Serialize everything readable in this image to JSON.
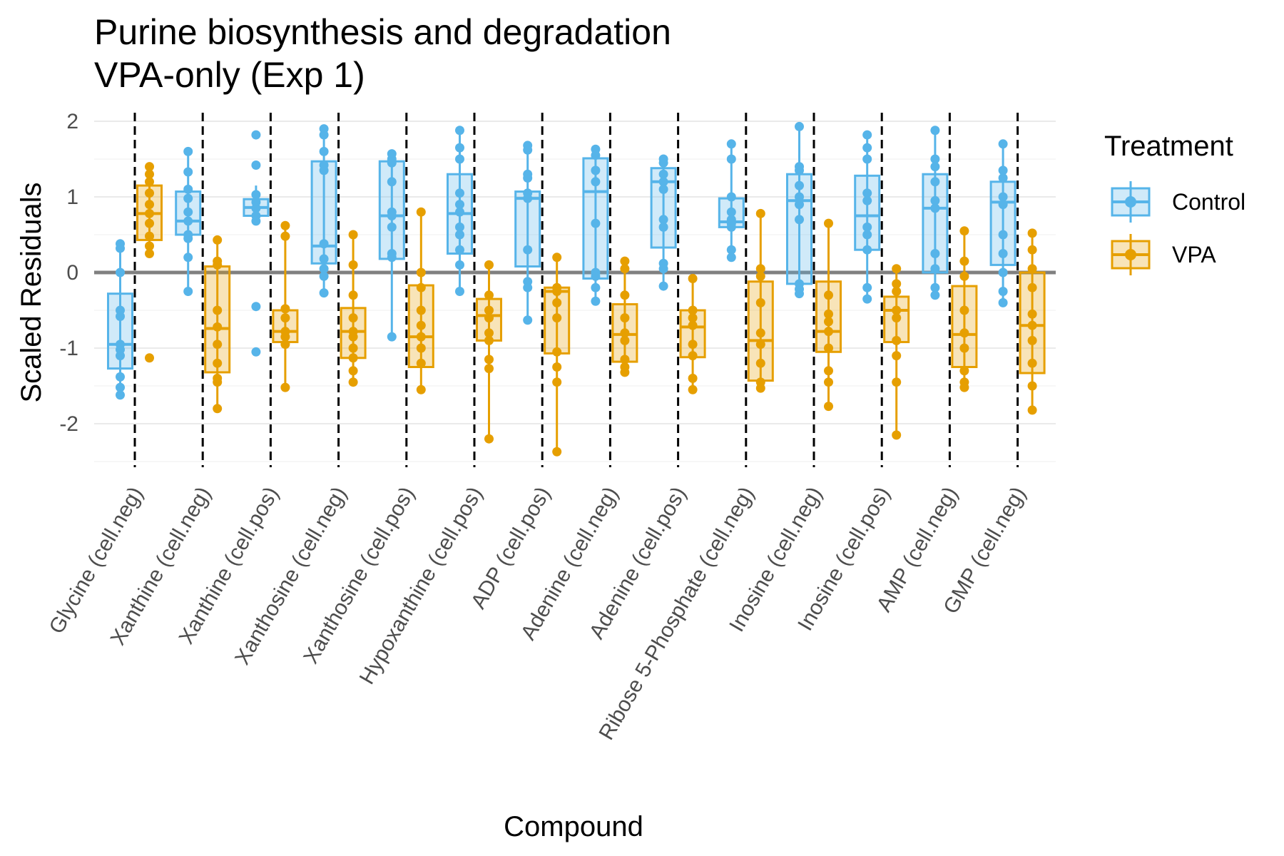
{
  "chart_data": {
    "type": "box",
    "title": [
      "Purine biosynthesis and degradation",
      "VPA-only (Exp 1)"
    ],
    "xlabel": "Compound",
    "ylabel": "Scaled Residuals",
    "ylim": [
      -2.5,
      2.2
    ],
    "yticks": [
      2,
      1,
      0,
      -1,
      -2
    ],
    "ytick_labels": [
      "2",
      "1",
      "0",
      "-1",
      "-2"
    ],
    "reference_line_y": 0,
    "grid": true,
    "legend_position": "right",
    "legend_title": "Treatment",
    "categories": [
      "Glycine (cell.neg)",
      "Xanthine (cell.neg)",
      "Xanthine (cell.pos)",
      "Xanthosine (cell.neg)",
      "Xanthosine (cell.pos)",
      "Hypoxanthine (cell.pos)",
      "ADP (cell.pos)",
      "Adenine (cell.neg)",
      "Adenine (cell.pos)",
      "Ribose 5-Phosphate (cell.neg)",
      "Inosine (cell.neg)",
      "Inosine (cell.pos)",
      "AMP (cell.neg)",
      "GMP (cell.neg)"
    ],
    "series": [
      {
        "name": "Control",
        "color": "#56B4E9",
        "boxes": [
          {
            "min": -1.6,
            "q1": -1.27,
            "median": -0.95,
            "q3": -0.28,
            "max": 0.38
          },
          {
            "min": -0.25,
            "q1": 0.5,
            "median": 0.68,
            "q3": 1.07,
            "max": 1.6
          },
          {
            "min": 0.65,
            "q1": 0.75,
            "median": 0.86,
            "q3": 0.97,
            "max": 1.15
          },
          {
            "min": -0.27,
            "q1": 0.12,
            "median": 0.35,
            "q3": 1.47,
            "max": 1.9
          },
          {
            "min": -0.85,
            "q1": 0.18,
            "median": 0.75,
            "q3": 1.47,
            "max": 1.57
          },
          {
            "min": -0.25,
            "q1": 0.25,
            "median": 0.78,
            "q3": 1.3,
            "max": 1.88
          },
          {
            "min": -0.63,
            "q1": 0.08,
            "median": 0.98,
            "q3": 1.07,
            "max": 1.68
          },
          {
            "min": -0.38,
            "q1": -0.08,
            "median": 1.07,
            "q3": 1.51,
            "max": 1.63
          },
          {
            "min": -0.18,
            "q1": 0.33,
            "median": 1.2,
            "q3": 1.38,
            "max": 1.5
          },
          {
            "min": 0.17,
            "q1": 0.6,
            "median": 0.67,
            "q3": 0.98,
            "max": 1.7
          },
          {
            "min": -0.28,
            "q1": -0.15,
            "median": 0.95,
            "q3": 1.3,
            "max": 1.93
          },
          {
            "min": -0.35,
            "q1": 0.3,
            "median": 0.75,
            "q3": 1.28,
            "max": 1.82
          },
          {
            "min": -0.3,
            "q1": 0.0,
            "median": 0.85,
            "q3": 1.3,
            "max": 1.88
          },
          {
            "min": -0.4,
            "q1": 0.1,
            "median": 0.93,
            "q3": 1.2,
            "max": 1.7
          }
        ],
        "points": [
          [
            0.38,
            0.32,
            0.0,
            -0.5,
            -0.58,
            -0.95,
            -1.02,
            -1.1,
            -1.38,
            -1.52,
            -1.62
          ],
          [
            1.6,
            1.33,
            1.1,
            0.98,
            0.8,
            0.68,
            0.5,
            0.45,
            0.2,
            -0.25
          ],
          [
            1.82,
            1.42,
            1.03,
            0.93,
            0.85,
            0.75,
            0.68,
            -0.45,
            -1.05
          ],
          [
            1.9,
            1.82,
            1.6,
            1.42,
            1.35,
            0.38,
            0.18,
            0.05,
            -0.05,
            -0.27
          ],
          [
            1.57,
            1.5,
            1.45,
            1.2,
            0.8,
            0.75,
            0.6,
            0.25,
            0.2,
            -0.85
          ],
          [
            1.88,
            1.65,
            1.5,
            1.05,
            0.9,
            0.8,
            0.6,
            0.5,
            0.3,
            0.1,
            -0.25
          ],
          [
            1.68,
            1.62,
            1.3,
            1.25,
            1.05,
            0.98,
            0.3,
            -0.12,
            -0.2,
            -0.63
          ],
          [
            1.63,
            1.55,
            1.35,
            1.2,
            0.65,
            0.0,
            -0.05,
            -0.2,
            -0.38
          ],
          [
            1.5,
            1.45,
            1.3,
            1.2,
            1.1,
            0.7,
            0.6,
            0.12,
            0.05,
            -0.18
          ],
          [
            1.7,
            1.5,
            1.0,
            0.8,
            0.7,
            0.65,
            0.6,
            0.3,
            0.2
          ],
          [
            1.93,
            1.4,
            1.35,
            1.15,
            1.0,
            0.9,
            0.7,
            -0.15,
            -0.22,
            -0.28
          ],
          [
            1.82,
            1.65,
            1.5,
            1.05,
            0.95,
            0.6,
            0.5,
            0.3,
            -0.2,
            -0.35
          ],
          [
            1.88,
            1.5,
            1.4,
            1.2,
            0.95,
            0.85,
            0.25,
            0.05,
            -0.2,
            -0.3
          ],
          [
            1.7,
            1.35,
            1.25,
            1.0,
            0.9,
            0.5,
            0.25,
            0.0,
            -0.25,
            -0.4
          ]
        ]
      },
      {
        "name": "VPA",
        "color": "#E69F00",
        "boxes": [
          {
            "min": 0.25,
            "q1": 0.43,
            "median": 0.78,
            "q3": 1.15,
            "max": 1.4
          },
          {
            "min": -1.8,
            "q1": -1.32,
            "median": -0.74,
            "q3": 0.08,
            "max": 0.43
          },
          {
            "min": -1.52,
            "q1": -0.92,
            "median": -0.78,
            "q3": -0.5,
            "max": 0.62
          },
          {
            "min": -1.45,
            "q1": -1.13,
            "median": -0.78,
            "q3": -0.47,
            "max": 0.5
          },
          {
            "min": -1.58,
            "q1": -1.25,
            "median": -0.85,
            "q3": -0.17,
            "max": 0.8
          },
          {
            "min": -2.2,
            "q1": -0.9,
            "median": -0.57,
            "q3": -0.35,
            "max": 0.1
          },
          {
            "min": -2.37,
            "q1": -1.07,
            "median": -0.25,
            "q3": -0.2,
            "max": 0.2
          },
          {
            "min": -1.32,
            "q1": -1.18,
            "median": -0.82,
            "q3": -0.42,
            "max": 0.15
          },
          {
            "min": -1.55,
            "q1": -1.12,
            "median": -0.72,
            "q3": -0.5,
            "max": -0.08
          },
          {
            "min": -1.53,
            "q1": -1.43,
            "median": -0.9,
            "q3": -0.12,
            "max": 0.78
          },
          {
            "min": -1.77,
            "q1": -1.05,
            "median": -0.78,
            "q3": -0.12,
            "max": 0.65
          },
          {
            "min": -2.15,
            "q1": -0.92,
            "median": -0.5,
            "q3": -0.32,
            "max": 0.05
          },
          {
            "min": -1.52,
            "q1": -1.25,
            "median": -0.82,
            "q3": -0.18,
            "max": 0.55
          },
          {
            "min": -1.82,
            "q1": -1.33,
            "median": -0.7,
            "q3": 0.0,
            "max": 0.52
          }
        ],
        "points": [
          [
            1.4,
            1.3,
            1.2,
            1.05,
            0.9,
            0.78,
            0.65,
            0.48,
            0.35,
            0.25,
            -1.13
          ],
          [
            0.43,
            0.15,
            0.1,
            -0.5,
            -0.72,
            -0.95,
            -1.2,
            -1.4,
            -1.45,
            -1.8
          ],
          [
            0.62,
            0.48,
            -0.48,
            -0.6,
            -0.78,
            -0.85,
            -0.95,
            -1.52
          ],
          [
            0.5,
            0.1,
            -0.3,
            -0.6,
            -0.78,
            -0.85,
            -1.0,
            -1.13,
            -1.3,
            -1.45
          ],
          [
            0.8,
            0.0,
            -0.2,
            -0.5,
            -0.7,
            -0.85,
            -1.0,
            -1.2,
            -1.55
          ],
          [
            0.1,
            -0.3,
            -0.5,
            -0.6,
            -0.8,
            -0.9,
            -1.15,
            -1.27,
            -2.2
          ],
          [
            0.2,
            -0.2,
            -0.25,
            -0.4,
            -0.6,
            -1.05,
            -1.25,
            -1.45,
            -2.37
          ],
          [
            0.15,
            0.05,
            -0.3,
            -0.6,
            -0.8,
            -0.9,
            -1.15,
            -1.25,
            -1.32
          ],
          [
            -0.08,
            -0.5,
            -0.6,
            -0.7,
            -0.95,
            -1.1,
            -1.4,
            -1.55
          ],
          [
            0.78,
            0.05,
            -0.05,
            -0.4,
            -0.8,
            -0.95,
            -1.2,
            -1.45,
            -1.53
          ],
          [
            0.65,
            -0.3,
            -0.55,
            -0.65,
            -0.78,
            -1.0,
            -1.3,
            -1.45,
            -1.77
          ],
          [
            0.05,
            -0.15,
            -0.25,
            -0.5,
            -0.6,
            -0.9,
            -1.1,
            -1.45,
            -2.15
          ],
          [
            0.55,
            0.15,
            -0.05,
            -0.5,
            -0.8,
            -1.0,
            -1.3,
            -1.45,
            -1.52
          ],
          [
            0.52,
            0.3,
            0.05,
            -0.2,
            -0.55,
            -0.7,
            -0.9,
            -1.2,
            -1.5,
            -1.82
          ]
        ]
      }
    ]
  }
}
